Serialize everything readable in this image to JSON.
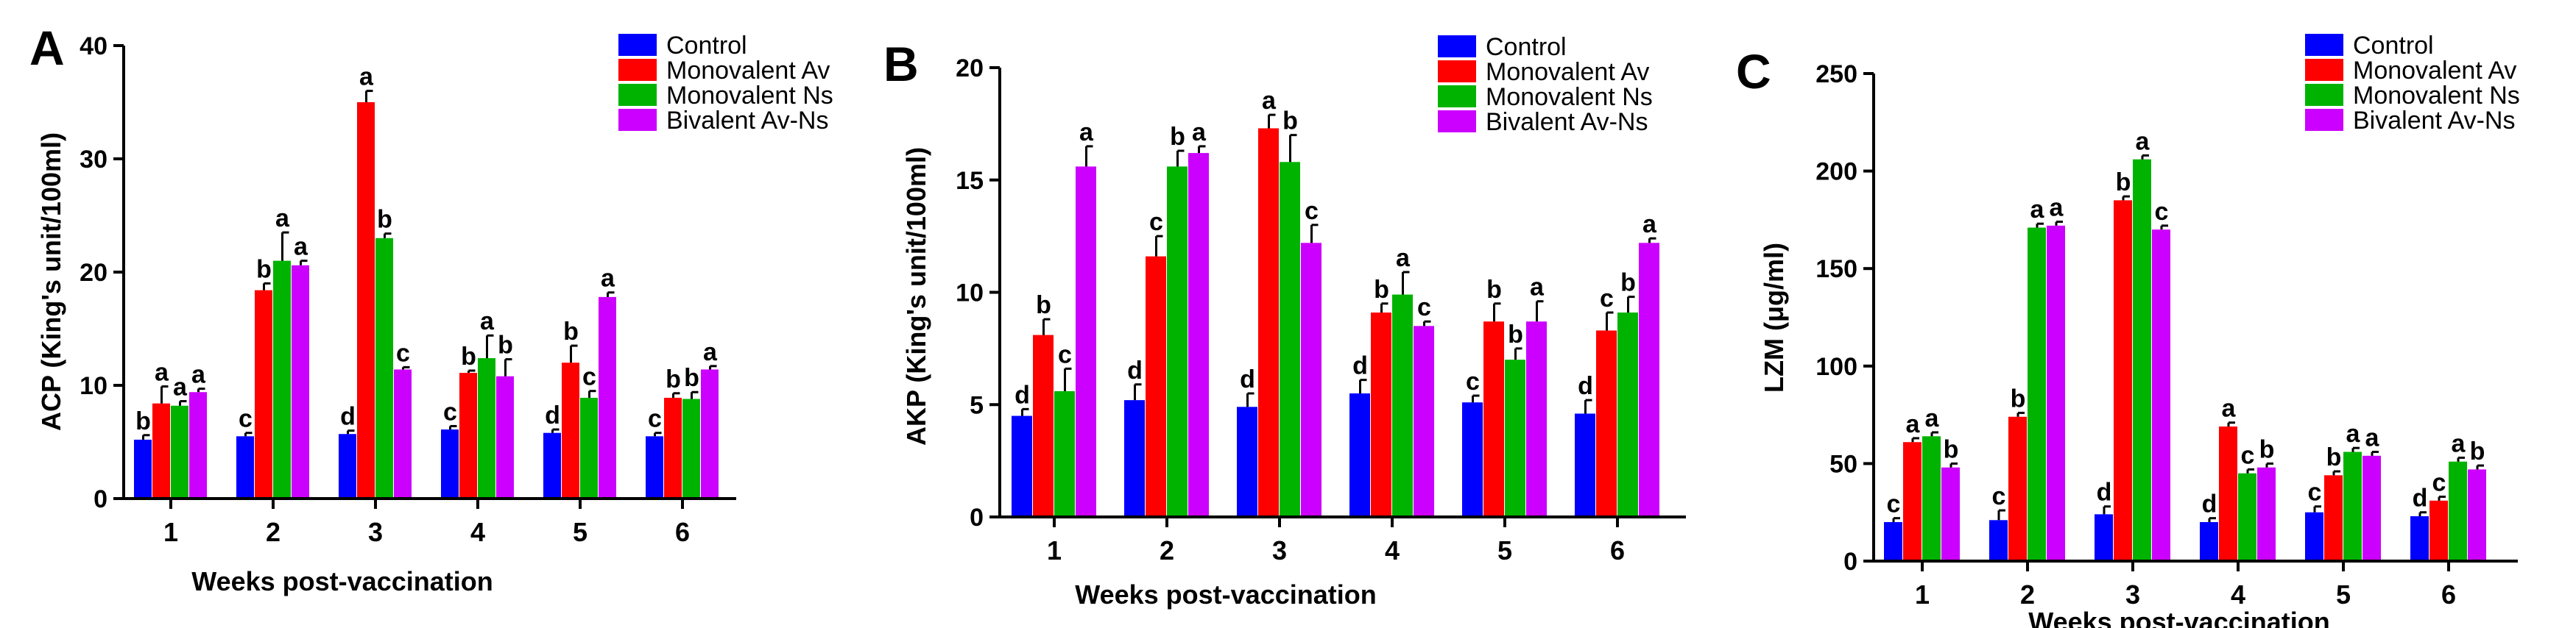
{
  "colors": {
    "Control": "#0000ff",
    "Monovalent Av": "#ff0000",
    "Monovalent Ns": "#00b300",
    "Bivalent Av-Ns": "#cc00ff"
  },
  "chart_data": [
    {
      "type": "bar",
      "panel": "A",
      "ylabel": "ACP (King's unit/100ml)",
      "xlabel": "Weeks post-vaccination",
      "ylim": [
        0,
        40
      ],
      "yticks": [
        0,
        10,
        20,
        30,
        40
      ],
      "categories": [
        "1",
        "2",
        "3",
        "4",
        "5",
        "6"
      ],
      "legend": [
        "Control",
        "Monovalent Av",
        "Monovalent Ns",
        "Bivalent Av-Ns"
      ],
      "legend_position": "top-right",
      "series": [
        {
          "name": "Control",
          "values": [
            5.2,
            5.5,
            5.7,
            6.1,
            5.8,
            5.5
          ],
          "errors": [
            0.4,
            0.3,
            0.3,
            0.3,
            0.3,
            0.3
          ],
          "letters": [
            "b",
            "c",
            "d",
            "c",
            "d",
            "c"
          ]
        },
        {
          "name": "Monovalent Av",
          "values": [
            8.4,
            18.4,
            35.0,
            11.1,
            12.0,
            8.9
          ],
          "errors": [
            1.5,
            0.6,
            1.0,
            0.2,
            1.5,
            0.4
          ],
          "letters": [
            "a",
            "b",
            "a",
            "b",
            "b",
            "b"
          ]
        },
        {
          "name": "Monovalent Ns",
          "values": [
            8.2,
            21.0,
            23.0,
            12.4,
            8.9,
            8.8
          ],
          "errors": [
            0.4,
            2.5,
            0.4,
            2.0,
            0.6,
            0.6
          ],
          "letters": [
            "a",
            "a",
            "b",
            "a",
            "c",
            "b"
          ]
        },
        {
          "name": "Bivalent Av-Ns",
          "values": [
            9.4,
            20.6,
            11.4,
            10.8,
            17.8,
            11.4
          ],
          "errors": [
            0.3,
            0.4,
            0.2,
            1.5,
            0.4,
            0.3
          ],
          "letters": [
            "a",
            "a",
            "c",
            "b",
            "a",
            "a"
          ]
        }
      ]
    },
    {
      "type": "bar",
      "panel": "B",
      "ylabel": "AKP (King's unit/100ml)",
      "xlabel": "Weeks post-vaccination",
      "ylim": [
        0,
        20
      ],
      "yticks": [
        0,
        5,
        10,
        15,
        20
      ],
      "categories": [
        "1",
        "2",
        "3",
        "4",
        "5",
        "6"
      ],
      "legend": [
        "Control",
        "Monovalent Av",
        "Monovalent Ns",
        "Bivalent Av-Ns"
      ],
      "legend_position": "top-right",
      "series": [
        {
          "name": "Control",
          "values": [
            4.5,
            5.2,
            4.9,
            5.5,
            5.1,
            4.6
          ],
          "errors": [
            0.3,
            0.7,
            0.6,
            0.6,
            0.3,
            0.6
          ],
          "letters": [
            "d",
            "d",
            "d",
            "d",
            "c",
            "d"
          ]
        },
        {
          "name": "Monovalent Av",
          "values": [
            8.1,
            11.6,
            17.3,
            9.1,
            8.7,
            8.3
          ],
          "errors": [
            0.7,
            0.9,
            0.6,
            0.4,
            0.8,
            0.8
          ],
          "letters": [
            "b",
            "c",
            "a",
            "b",
            "b",
            "c"
          ]
        },
        {
          "name": "Monovalent Ns",
          "values": [
            5.6,
            15.6,
            15.8,
            9.9,
            7.0,
            9.1
          ],
          "errors": [
            1.0,
            0.7,
            1.2,
            1.0,
            0.5,
            0.7
          ],
          "letters": [
            "c",
            "b",
            "b",
            "a",
            "b",
            "b"
          ]
        },
        {
          "name": "Bivalent Av-Ns",
          "values": [
            15.6,
            16.2,
            12.2,
            8.5,
            8.7,
            12.2
          ],
          "errors": [
            0.9,
            0.3,
            0.8,
            0.2,
            0.9,
            0.2
          ],
          "letters": [
            "a",
            "a",
            "c",
            "c",
            "a",
            "a"
          ]
        }
      ]
    },
    {
      "type": "bar",
      "panel": "C",
      "ylabel": "LZM (μg/ml)",
      "xlabel": "Weeks post-vaccination",
      "ylim": [
        0,
        250
      ],
      "yticks": [
        0,
        50,
        100,
        150,
        200,
        250
      ],
      "categories": [
        "1",
        "2",
        "3",
        "4",
        "5",
        "6"
      ],
      "legend": [
        "Control",
        "Monovalent Av",
        "Monovalent Ns",
        "Bivalent Av-Ns"
      ],
      "legend_position": "top-right",
      "series": [
        {
          "name": "Control",
          "values": [
            20,
            21,
            24,
            20,
            25,
            23
          ],
          "errors": [
            2,
            5,
            4,
            2,
            3,
            2
          ],
          "letters": [
            "c",
            "c",
            "d",
            "d",
            "c",
            "d"
          ]
        },
        {
          "name": "Monovalent Av",
          "values": [
            61,
            74,
            185,
            69,
            44,
            31
          ],
          "errors": [
            2,
            2,
            2,
            2,
            2,
            2
          ],
          "letters": [
            "a",
            "b",
            "b",
            "a",
            "b",
            "c"
          ]
        },
        {
          "name": "Monovalent Ns",
          "values": [
            64,
            171,
            206,
            45,
            56,
            51
          ],
          "errors": [
            2,
            2,
            2,
            2,
            2,
            2
          ],
          "letters": [
            "a",
            "a",
            "a",
            "c",
            "a",
            "a"
          ]
        },
        {
          "name": "Bivalent Av-Ns",
          "values": [
            48,
            172,
            170,
            48,
            54,
            47
          ],
          "errors": [
            2,
            2,
            2,
            2,
            2,
            2
          ],
          "letters": [
            "b",
            "a",
            "c",
            "b",
            "a",
            "b"
          ]
        }
      ]
    }
  ]
}
